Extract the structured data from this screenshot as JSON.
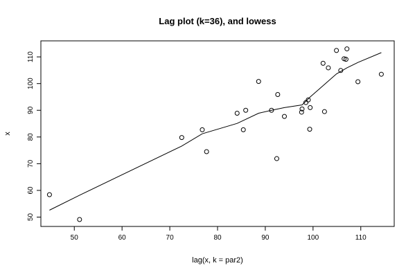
{
  "chart_data": {
    "type": "scatter",
    "title": "Lag plot (k=36), and lowess",
    "xlabel": "lag(x, k = par2)",
    "ylabel": "x",
    "xlim": [
      43,
      117
    ],
    "ylim": [
      46.5,
      116
    ],
    "xticks": [
      50,
      60,
      70,
      80,
      90,
      100,
      110
    ],
    "yticks": [
      50,
      60,
      70,
      80,
      90,
      100,
      110
    ],
    "grid": false,
    "legend": "none",
    "points": [
      {
        "x": 44.8,
        "y": 58.4
      },
      {
        "x": 51.1,
        "y": 49.1
      },
      {
        "x": 72.5,
        "y": 79.8
      },
      {
        "x": 76.8,
        "y": 82.7
      },
      {
        "x": 77.7,
        "y": 74.5
      },
      {
        "x": 84.1,
        "y": 88.9
      },
      {
        "x": 85.4,
        "y": 82.7
      },
      {
        "x": 85.9,
        "y": 90.0
      },
      {
        "x": 88.6,
        "y": 100.8
      },
      {
        "x": 91.3,
        "y": 90.0
      },
      {
        "x": 92.4,
        "y": 71.9
      },
      {
        "x": 92.6,
        "y": 95.9
      },
      {
        "x": 94.0,
        "y": 87.7
      },
      {
        "x": 97.6,
        "y": 89.3
      },
      {
        "x": 97.7,
        "y": 90.5
      },
      {
        "x": 98.5,
        "y": 92.9
      },
      {
        "x": 99.0,
        "y": 93.9
      },
      {
        "x": 99.3,
        "y": 82.9
      },
      {
        "x": 99.4,
        "y": 91.0
      },
      {
        "x": 102.1,
        "y": 107.6
      },
      {
        "x": 102.4,
        "y": 89.5
      },
      {
        "x": 103.2,
        "y": 105.9
      },
      {
        "x": 104.9,
        "y": 112.4
      },
      {
        "x": 105.8,
        "y": 104.9
      },
      {
        "x": 106.5,
        "y": 109.3
      },
      {
        "x": 106.9,
        "y": 109.1
      },
      {
        "x": 107.1,
        "y": 113.0
      },
      {
        "x": 109.4,
        "y": 100.7
      },
      {
        "x": 114.3,
        "y": 103.5
      }
    ],
    "lowess": [
      {
        "x": 44.8,
        "y": 52.6
      },
      {
        "x": 51.1,
        "y": 58.2
      },
      {
        "x": 72.5,
        "y": 76.6
      },
      {
        "x": 76.8,
        "y": 81.2
      },
      {
        "x": 84.1,
        "y": 85.1
      },
      {
        "x": 88.6,
        "y": 88.9
      },
      {
        "x": 91.3,
        "y": 90.0
      },
      {
        "x": 94.0,
        "y": 91.0
      },
      {
        "x": 97.7,
        "y": 92.0
      },
      {
        "x": 99.4,
        "y": 95.0
      },
      {
        "x": 102.4,
        "y": 99.7
      },
      {
        "x": 104.9,
        "y": 103.6
      },
      {
        "x": 107.1,
        "y": 105.9
      },
      {
        "x": 109.4,
        "y": 107.9
      },
      {
        "x": 114.3,
        "y": 111.6
      }
    ]
  }
}
